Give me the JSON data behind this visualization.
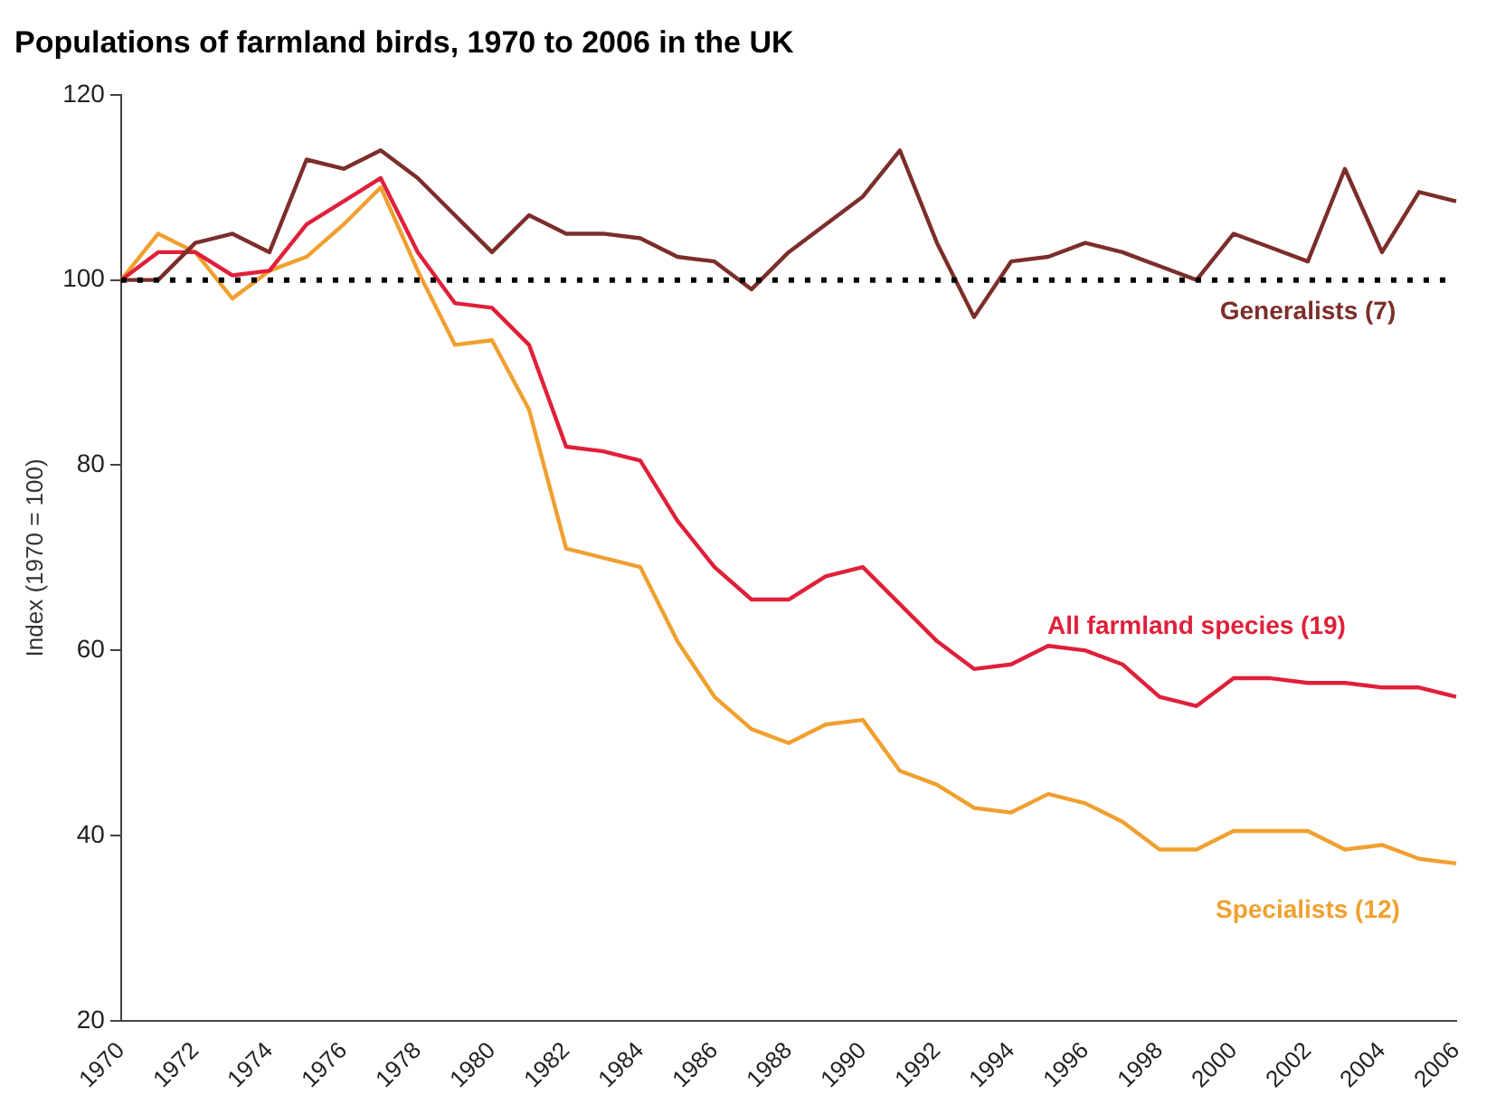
{
  "chart_data": {
    "type": "line",
    "title": "Populations of farmland birds, 1970 to 2006 in the UK",
    "ylabel": "Index (1970 = 100)",
    "categories": [
      "1970",
      null,
      "1972",
      null,
      "1974",
      null,
      "1976",
      null,
      "1978",
      null,
      "1980",
      null,
      "1982",
      null,
      "1984",
      null,
      "1986",
      null,
      "1988",
      null,
      "1990",
      null,
      "1992",
      null,
      "1994",
      null,
      "1996",
      null,
      "1998",
      null,
      "2000",
      null,
      "2002",
      null,
      "2004",
      null,
      "2006"
    ],
    "series": [
      {
        "name": "Generalists (7)",
        "color": "#7b2e2a",
        "values": [
          100,
          100,
          104,
          105,
          103,
          113,
          112,
          114,
          111,
          107,
          103,
          107,
          105,
          105,
          104.5,
          102.5,
          102,
          99,
          103,
          106,
          109,
          114,
          104,
          96,
          102,
          102.5,
          104,
          103,
          101.5,
          100,
          105,
          103.5,
          102,
          112,
          103,
          109.5,
          108.5
        ]
      },
      {
        "name": "All farmland species (19)",
        "color": "#e0203a",
        "values": [
          100,
          103,
          103,
          100.5,
          101,
          106,
          108.5,
          111,
          103,
          97.5,
          97,
          93,
          82,
          81.5,
          80.5,
          74,
          69,
          65.5,
          65.5,
          68,
          69,
          65,
          61,
          58,
          58.5,
          60.5,
          60,
          58.5,
          55,
          54,
          57,
          57,
          56.5,
          56.5,
          56,
          56,
          55
        ]
      },
      {
        "name": "Specialists (12)",
        "color": "#f0a030",
        "values": [
          100,
          105,
          103,
          98,
          101,
          102.5,
          106,
          110,
          101,
          93,
          93.5,
          86,
          71,
          70,
          69,
          61,
          55,
          51.5,
          50,
          52,
          52.5,
          47,
          45.5,
          43,
          42.5,
          44.5,
          43.5,
          41.5,
          38.5,
          38.5,
          40.5,
          40.5,
          40.5,
          38.5,
          39,
          37.5,
          37
        ]
      }
    ],
    "ylim": [
      20,
      120
    ],
    "yticks": [
      20,
      40,
      60,
      80,
      100,
      120
    ],
    "grid": false,
    "legend": false,
    "marker": "none",
    "line_style": "solid",
    "ref_lines": [
      {
        "axis": "y",
        "value": 100,
        "color": "#000000",
        "line_style": "dotted"
      }
    ]
  }
}
